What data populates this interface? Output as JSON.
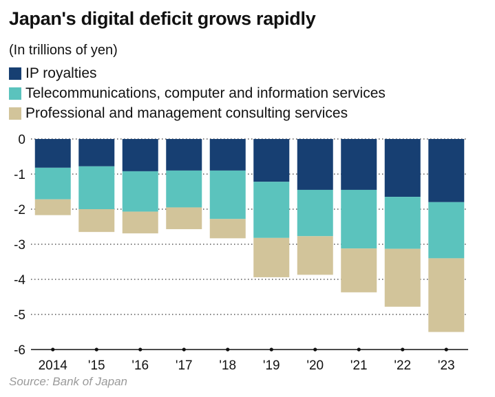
{
  "chart_data": {
    "type": "bar",
    "stacked": true,
    "title": "Japan's digital deficit grows rapidly",
    "subtitle": "(In trillions of yen)",
    "source": "Source: Bank of Japan",
    "categories": [
      "2014",
      "'15",
      "'16",
      "'17",
      "'18",
      "'19",
      "'20",
      "'21",
      "'22",
      "'23"
    ],
    "series": [
      {
        "name": "IP royalties",
        "color": "#173f72",
        "values": [
          -0.82,
          -0.78,
          -0.92,
          -0.9,
          -0.9,
          -1.22,
          -1.45,
          -1.45,
          -1.65,
          -1.8
        ]
      },
      {
        "name": "Telecommunications, computer and information services",
        "color": "#5bc3bd",
        "values": [
          -0.9,
          -1.22,
          -1.15,
          -1.05,
          -1.38,
          -1.6,
          -1.32,
          -1.67,
          -1.48,
          -1.6
        ]
      },
      {
        "name": "Professional and management consulting services",
        "color": "#d2c49a",
        "values": [
          -0.45,
          -0.65,
          -0.62,
          -0.62,
          -0.55,
          -1.12,
          -1.1,
          -1.25,
          -1.65,
          -2.1
        ]
      }
    ],
    "ylim": [
      -6,
      0
    ],
    "yticks": [
      0,
      -1,
      -2,
      -3,
      -4,
      -5,
      -6
    ],
    "xlabel": "",
    "ylabel": "",
    "grid": "dotted horizontal",
    "legend_position": "top-left"
  }
}
